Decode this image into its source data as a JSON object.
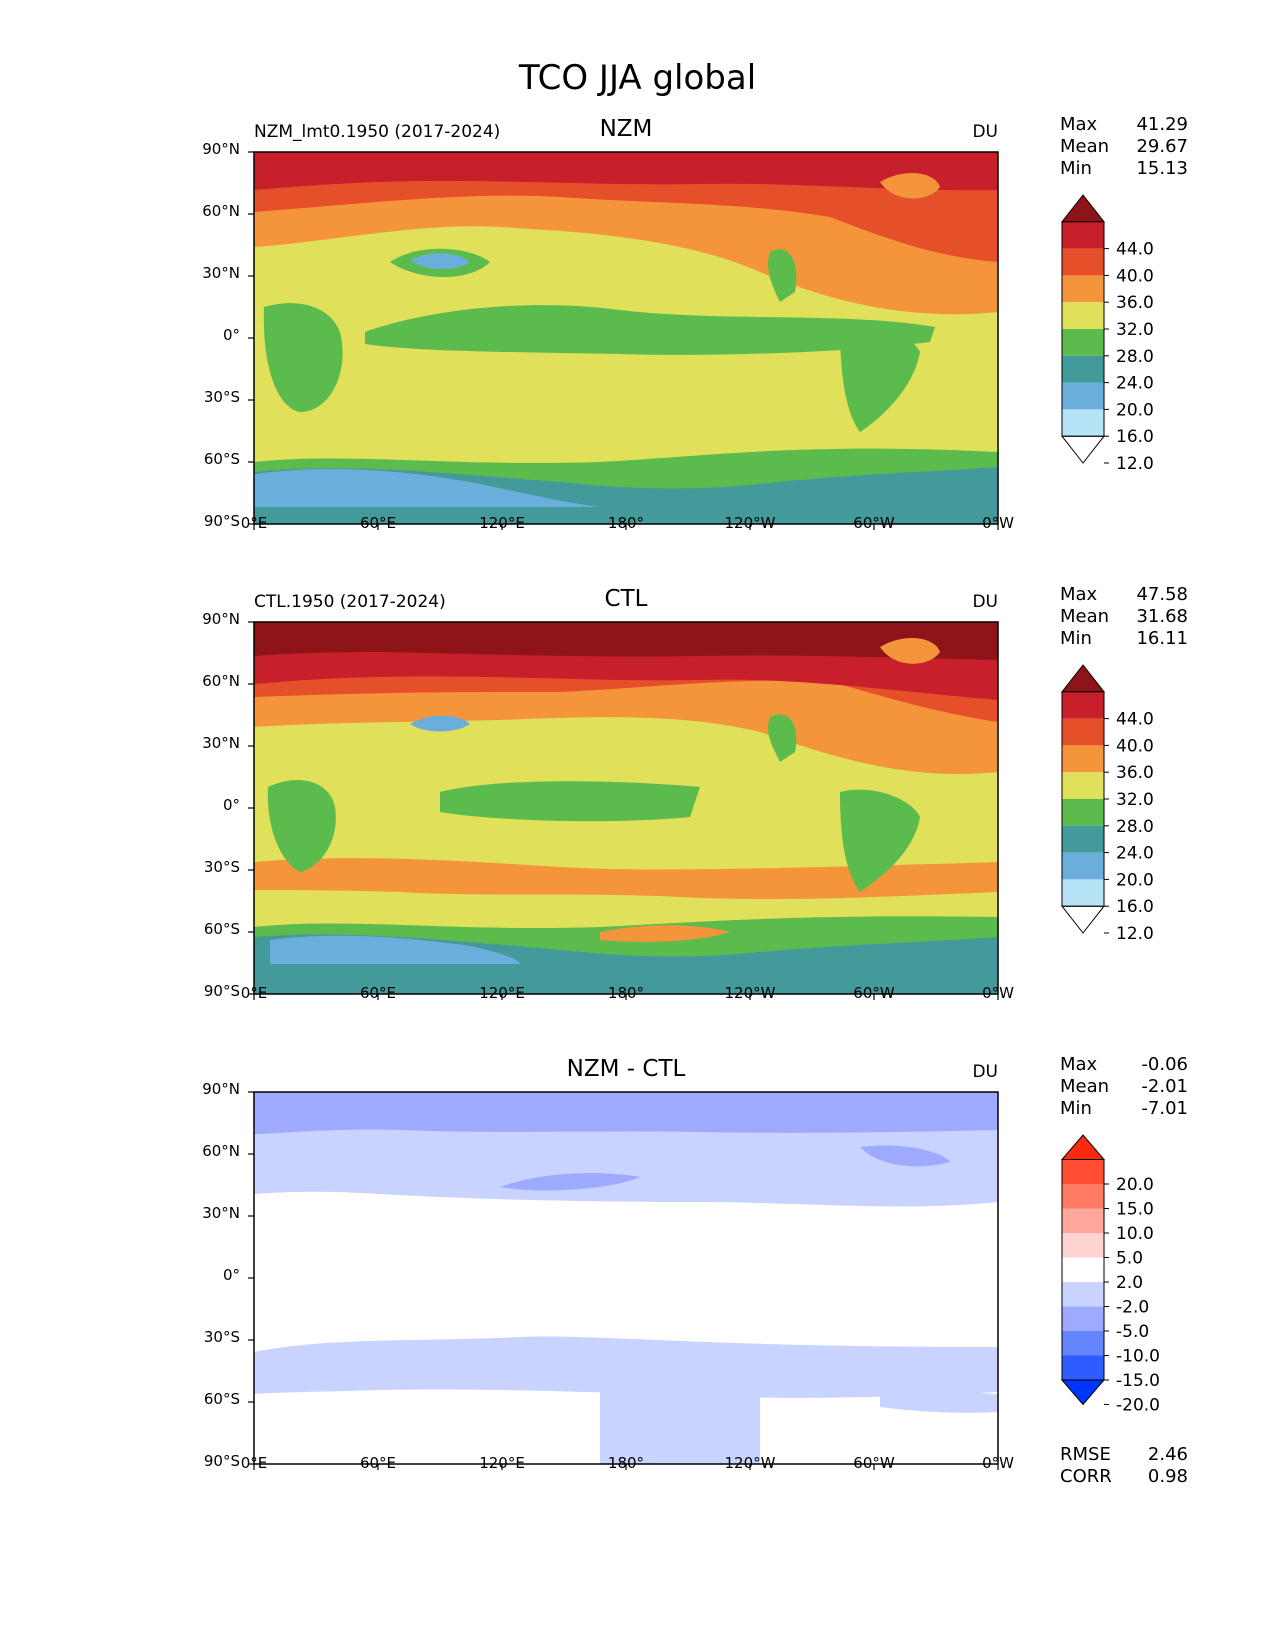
{
  "title": "TCO JJA global",
  "axes": {
    "y_ticks": [
      "90°N",
      "60°N",
      "30°N",
      "0°",
      "30°S",
      "60°S",
      "90°S"
    ],
    "x_ticks": [
      "0°E",
      "60°E",
      "120°E",
      "180°",
      "120°W",
      "60°W",
      "0°W"
    ]
  },
  "colors": {
    "abs_levels": [
      "#ffffff",
      "#b7e3f7",
      "#6aaedc",
      "#449a9a",
      "#5bbb4c",
      "#e0e05a",
      "#f5953b",
      "#e5502b",
      "#c7202a",
      "#8e1419"
    ],
    "diff_levels": [
      "#0035ff",
      "#2f5cff",
      "#6585ff",
      "#9daaff",
      "#c8d3ff",
      "#ffffff",
      "#ffd4d0",
      "#ffa79a",
      "#ff7b63",
      "#ff4e33",
      "#ff2a0e"
    ]
  },
  "chart_data": [
    {
      "type": "heatmap",
      "panel": "NZM",
      "subtitle_left": "NZM_lmt0.1950 (2017-2024)",
      "subtitle_center": "NZM",
      "units": "DU",
      "stats": [
        {
          "label": "Max",
          "value": "41.29"
        },
        {
          "label": "Mean",
          "value": "29.67"
        },
        {
          "label": "Min",
          "value": "15.13"
        }
      ],
      "colorbar_levels": [
        "44.0",
        "40.0",
        "36.0",
        "32.0",
        "28.0",
        "24.0",
        "20.0",
        "16.0",
        "12.0"
      ],
      "xlim": [
        0,
        360
      ],
      "ylim": [
        -90,
        90
      ]
    },
    {
      "type": "heatmap",
      "panel": "CTL",
      "subtitle_left": "CTL.1950 (2017-2024)",
      "subtitle_center": "CTL",
      "units": "DU",
      "stats": [
        {
          "label": "Max",
          "value": "47.58"
        },
        {
          "label": "Mean",
          "value": "31.68"
        },
        {
          "label": "Min",
          "value": "16.11"
        }
      ],
      "colorbar_levels": [
        "44.0",
        "40.0",
        "36.0",
        "32.0",
        "28.0",
        "24.0",
        "20.0",
        "16.0",
        "12.0"
      ],
      "xlim": [
        0,
        360
      ],
      "ylim": [
        -90,
        90
      ]
    },
    {
      "type": "heatmap",
      "panel": "NZM - CTL",
      "subtitle_left": "",
      "subtitle_center": "NZM - CTL",
      "units": "DU",
      "stats": [
        {
          "label": "Max",
          "value": "-0.06"
        },
        {
          "label": "Mean",
          "value": "-2.01"
        },
        {
          "label": "Min",
          "value": "-7.01"
        }
      ],
      "colorbar_levels": [
        "20.0",
        "15.0",
        "10.0",
        "5.0",
        "2.0",
        "-2.0",
        "-5.0",
        "-10.0",
        "-15.0",
        "-20.0"
      ],
      "metrics": [
        {
          "label": "RMSE",
          "value": "2.46"
        },
        {
          "label": "CORR",
          "value": "0.98"
        }
      ],
      "xlim": [
        0,
        360
      ],
      "ylim": [
        -90,
        90
      ]
    }
  ]
}
